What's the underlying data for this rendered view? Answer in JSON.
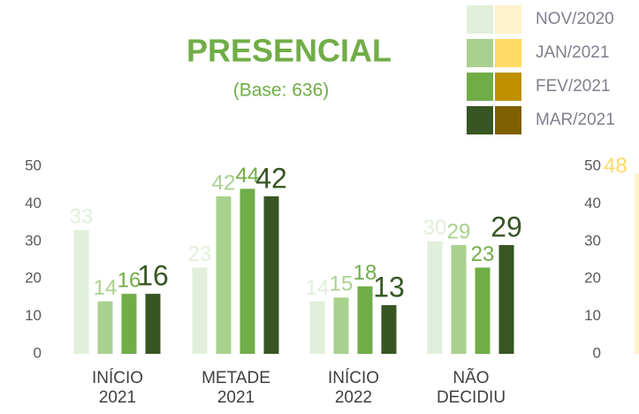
{
  "chart_data": [
    {
      "type": "bar",
      "title": "PRESENCIAL",
      "subtitle": "(Base: 636)",
      "categories": [
        "INÍCIO 2021",
        "METADE 2021",
        "INÍCIO 2022",
        "NÃO DECIDIU"
      ],
      "series": [
        {
          "name": "NOV/2020",
          "color": "#e2efda",
          "alt_color": "#fff2cc",
          "values": [
            33,
            23,
            14,
            30
          ]
        },
        {
          "name": "JAN/2021",
          "color": "#a9d18e",
          "alt_color": "#ffd966",
          "values": [
            14,
            42,
            15,
            29
          ]
        },
        {
          "name": "FEV/2021",
          "color": "#70ad47",
          "alt_color": "#bf9000",
          "values": [
            16,
            44,
            18,
            23
          ]
        },
        {
          "name": "MAR/2021",
          "color": "#375623",
          "alt_color": "#7f6000",
          "values": [
            16,
            42,
            13,
            29
          ]
        }
      ],
      "ylim": [
        0,
        50
      ],
      "yticks": [
        0,
        10,
        20,
        30,
        40,
        50
      ],
      "grid": false
    },
    {
      "type": "bar",
      "categories": [
        null
      ],
      "values": [
        48
      ],
      "color": "#fff2cc",
      "ylim": [
        0,
        50
      ],
      "yticks": [
        0,
        10,
        20,
        30,
        40,
        50
      ]
    }
  ]
}
